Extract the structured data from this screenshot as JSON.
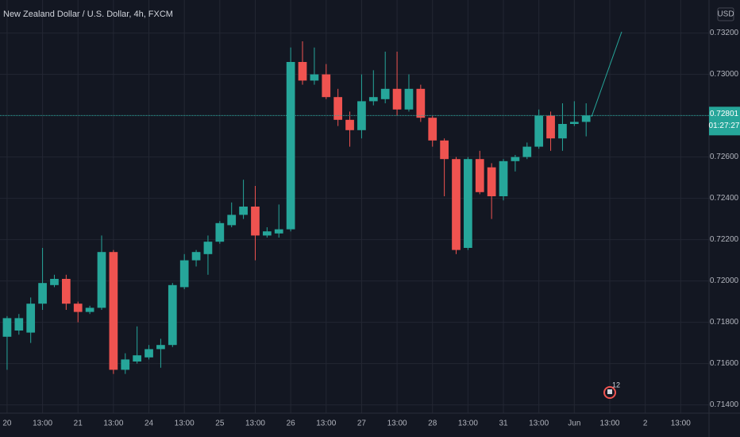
{
  "chart_data": {
    "type": "candlestick",
    "title": "New Zealand Dollar / U.S. Dollar, 4h, FXCM",
    "currency": "USD",
    "up_color": "#26a69a",
    "down_color": "#ef5350",
    "grid": true,
    "open": [
      0.7173,
      0.7176,
      0.7175,
      0.7189,
      0.7198,
      0.7201,
      0.7189,
      0.7185,
      0.7187,
      0.7214,
      0.7157,
      0.7161,
      0.7163,
      0.7167,
      0.7169,
      0.7197,
      0.721,
      0.7213,
      0.7219,
      0.7227,
      0.7232,
      0.7236,
      0.7222,
      0.7223,
      0.7225,
      0.7306,
      0.7297,
      0.73,
      0.7289,
      0.7278,
      0.7273,
      0.7287,
      0.7288,
      0.7293,
      0.7283,
      0.7293,
      0.7279,
      0.7268,
      0.7259,
      0.7216,
      0.7259,
      0.7255,
      0.7241,
      0.7258,
      0.726,
      0.7265,
      0.728,
      0.7269,
      0.7276,
      0.7277
    ],
    "high": [
      0.7183,
      0.7184,
      0.7192,
      0.7216,
      0.7203,
      0.7203,
      0.719,
      0.7188,
      0.7222,
      0.7215,
      0.7165,
      0.7178,
      0.7169,
      0.7172,
      0.7199,
      0.7213,
      0.7215,
      0.7222,
      0.7229,
      0.7238,
      0.7249,
      0.7246,
      0.7226,
      0.7237,
      0.7313,
      0.7316,
      0.7313,
      0.7305,
      0.7293,
      0.7282,
      0.73,
      0.7302,
      0.7311,
      0.7311,
      0.73,
      0.7295,
      0.728,
      0.7269,
      0.726,
      0.726,
      0.7263,
      0.7257,
      0.7259,
      0.7261,
      0.7267,
      0.7283,
      0.7282,
      0.7286,
      0.7287,
      0.7286
    ],
    "low": [
      0.7157,
      0.7174,
      0.717,
      0.7186,
      0.7197,
      0.7186,
      0.718,
      0.7184,
      0.7186,
      0.7155,
      0.7155,
      0.716,
      0.7162,
      0.7158,
      0.7168,
      0.7196,
      0.7207,
      0.7203,
      0.7218,
      0.7226,
      0.723,
      0.721,
      0.7221,
      0.7221,
      0.7224,
      0.7295,
      0.7295,
      0.7288,
      0.7275,
      0.7265,
      0.7269,
      0.7285,
      0.7286,
      0.728,
      0.7282,
      0.7277,
      0.7265,
      0.7241,
      0.7213,
      0.7215,
      0.7242,
      0.723,
      0.7239,
      0.7253,
      0.7259,
      0.7264,
      0.7263,
      0.7263,
      0.7275,
      0.727
    ],
    "close": [
      0.7182,
      0.7182,
      0.7189,
      0.7199,
      0.7201,
      0.7189,
      0.7185,
      0.7187,
      0.7214,
      0.7157,
      0.7162,
      0.7164,
      0.7167,
      0.7169,
      0.7198,
      0.721,
      0.7214,
      0.7219,
      0.7228,
      0.7232,
      0.7236,
      0.7222,
      0.7224,
      0.7225,
      0.7306,
      0.7297,
      0.73,
      0.7289,
      0.7278,
      0.7273,
      0.7287,
      0.7289,
      0.7293,
      0.7283,
      0.7293,
      0.7279,
      0.7268,
      0.7259,
      0.7215,
      0.7259,
      0.7243,
      0.7241,
      0.7258,
      0.726,
      0.7265,
      0.728,
      0.7269,
      0.7276,
      0.7277,
      0.72801
    ],
    "last_price": 0.72801,
    "countdown": "01:27:27",
    "event_count": 12,
    "xlim": [
      -0.6,
      59.4
    ],
    "xticks": [
      {
        "value": 0,
        "label": "20"
      },
      {
        "value": 3,
        "label": "13:00"
      },
      {
        "value": 6,
        "label": "21"
      },
      {
        "value": 9,
        "label": "13:00"
      },
      {
        "value": 12,
        "label": "24"
      },
      {
        "value": 15,
        "label": "13:00"
      },
      {
        "value": 18,
        "label": "25"
      },
      {
        "value": 21,
        "label": "13:00"
      },
      {
        "value": 24,
        "label": "26"
      },
      {
        "value": 27,
        "label": "13:00"
      },
      {
        "value": 30,
        "label": "27"
      },
      {
        "value": 33,
        "label": "13:00"
      },
      {
        "value": 36,
        "label": "28"
      },
      {
        "value": 39,
        "label": "13:00"
      },
      {
        "value": 42,
        "label": "31"
      },
      {
        "value": 45,
        "label": "13:00"
      },
      {
        "value": 48,
        "label": "Jun"
      },
      {
        "value": 51,
        "label": "13:00"
      },
      {
        "value": 54,
        "label": "2"
      },
      {
        "value": 57,
        "label": "13:00"
      }
    ],
    "ylim": [
      0.7136,
      0.7336
    ],
    "yticks": [
      {
        "value": 0.714,
        "label": "0.71400"
      },
      {
        "value": 0.716,
        "label": "0.71600"
      },
      {
        "value": 0.718,
        "label": "0.71800"
      },
      {
        "value": 0.72,
        "label": "0.72000"
      },
      {
        "value": 0.722,
        "label": "0.72200"
      },
      {
        "value": 0.724,
        "label": "0.72400"
      },
      {
        "value": 0.726,
        "label": "0.72600"
      },
      {
        "value": 0.728,
        "label": "0.72800"
      },
      {
        "value": 0.73,
        "label": "0.73000"
      },
      {
        "value": 0.732,
        "label": "0.73200"
      }
    ]
  }
}
